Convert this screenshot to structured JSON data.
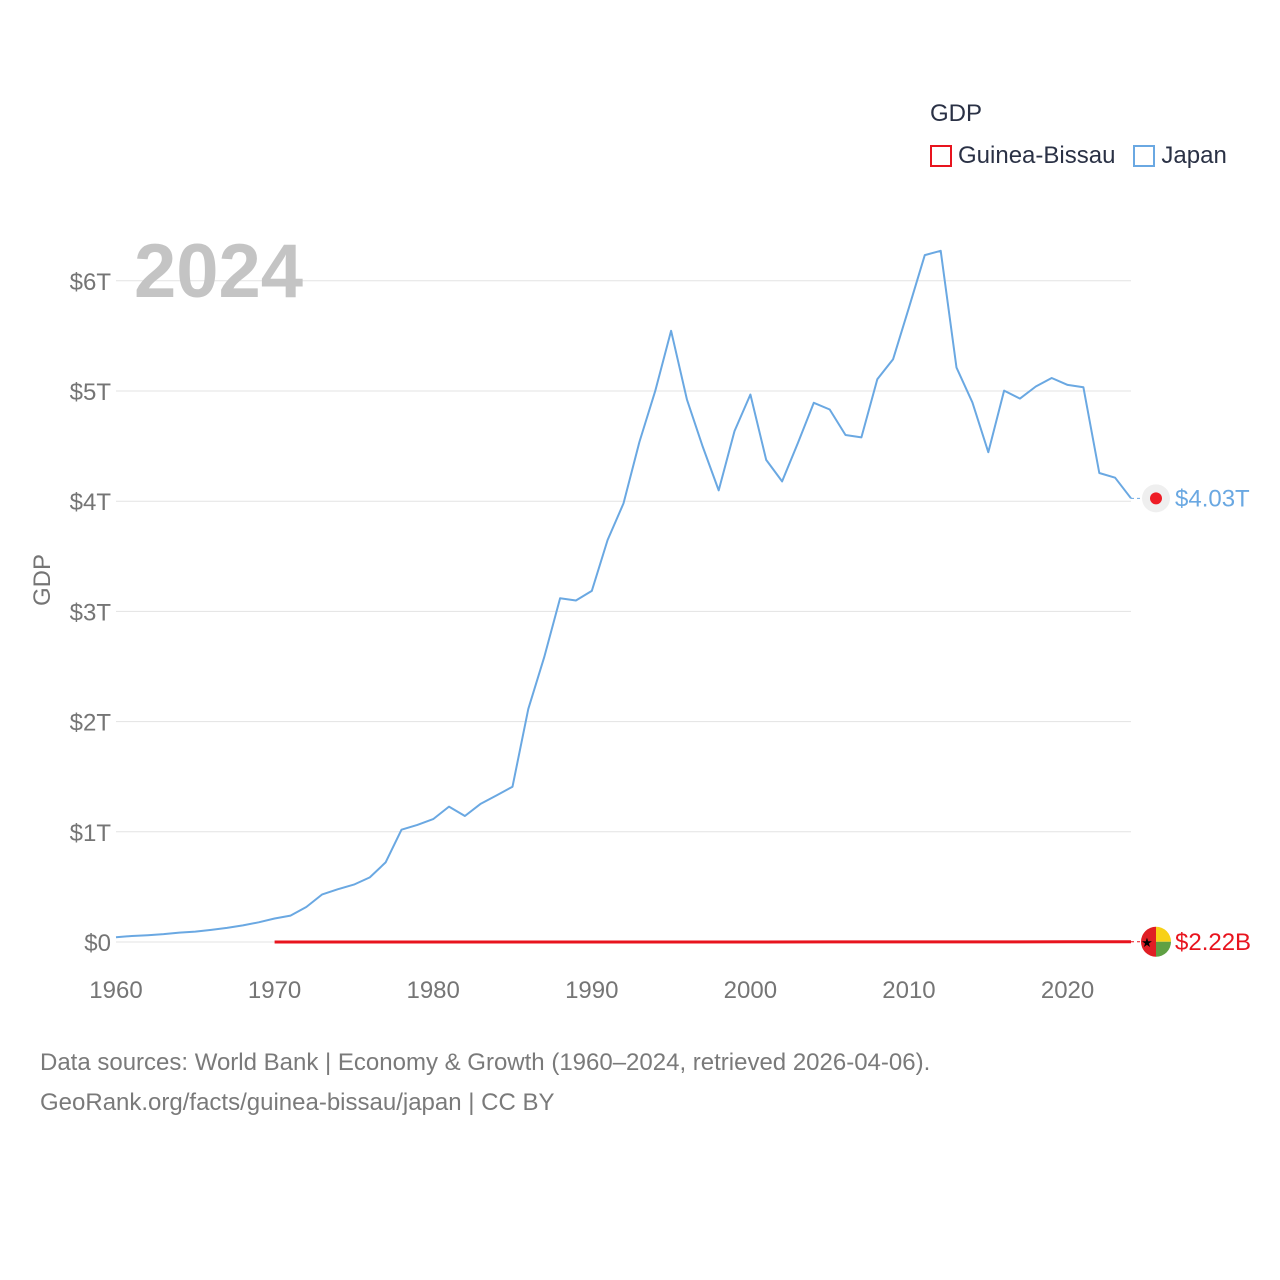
{
  "chart_data": {
    "type": "line",
    "ylabel": "GDP",
    "legend": {
      "title": "GDP",
      "position": "top-right"
    },
    "year_label": "2024",
    "xlim": [
      1960,
      2024
    ],
    "ylim": [
      0,
      6.5
    ],
    "y_ticks": [
      {
        "value": 0,
        "label": "$0"
      },
      {
        "value": 1,
        "label": "$1T"
      },
      {
        "value": 2,
        "label": "$2T"
      },
      {
        "value": 3,
        "label": "$3T"
      },
      {
        "value": 4,
        "label": "$4T"
      },
      {
        "value": 5,
        "label": "$5T"
      },
      {
        "value": 6,
        "label": "$6T"
      }
    ],
    "x_ticks": [
      {
        "value": 1960,
        "label": "1960"
      },
      {
        "value": 1970,
        "label": "1970"
      },
      {
        "value": 1980,
        "label": "1980"
      },
      {
        "value": 1990,
        "label": "1990"
      },
      {
        "value": 2000,
        "label": "2000"
      },
      {
        "value": 2010,
        "label": "2010"
      },
      {
        "value": 2020,
        "label": "2020"
      }
    ],
    "series": [
      {
        "name": "Guinea-Bissau",
        "color": "#e8141e",
        "end_label": "$2.22B",
        "x": [
          1970,
          1975,
          1980,
          1985,
          1990,
          1995,
          2000,
          2005,
          2010,
          2015,
          2020,
          2024
        ],
        "values": [
          0.0001,
          0.0001,
          0.0001,
          0.0001,
          0.0002,
          0.0003,
          0.0004,
          0.0006,
          0.0008,
          0.0011,
          0.0015,
          0.00222
        ]
      },
      {
        "name": "Japan",
        "color": "#6aa8e2",
        "end_label": "$4.03T",
        "x": [
          1960,
          1961,
          1962,
          1963,
          1964,
          1965,
          1966,
          1967,
          1968,
          1969,
          1970,
          1971,
          1972,
          1973,
          1974,
          1975,
          1976,
          1977,
          1978,
          1979,
          1980,
          1981,
          1982,
          1983,
          1984,
          1985,
          1986,
          1987,
          1988,
          1989,
          1990,
          1991,
          1992,
          1993,
          1994,
          1995,
          1996,
          1997,
          1998,
          1999,
          2000,
          2001,
          2002,
          2003,
          2004,
          2005,
          2006,
          2007,
          2008,
          2009,
          2010,
          2011,
          2012,
          2013,
          2014,
          2015,
          2016,
          2017,
          2018,
          2019,
          2020,
          2021,
          2022,
          2023,
          2024
        ],
        "values": [
          0.044,
          0.054,
          0.062,
          0.072,
          0.085,
          0.094,
          0.11,
          0.128,
          0.151,
          0.179,
          0.213,
          0.24,
          0.318,
          0.432,
          0.479,
          0.521,
          0.586,
          0.722,
          1.019,
          1.063,
          1.115,
          1.229,
          1.143,
          1.255,
          1.33,
          1.409,
          2.115,
          2.584,
          3.119,
          3.099,
          3.186,
          3.648,
          3.98,
          4.537,
          4.999,
          5.546,
          4.924,
          4.493,
          4.098,
          4.636,
          4.968,
          4.375,
          4.18,
          4.531,
          4.893,
          4.832,
          4.601,
          4.579,
          5.106,
          5.289,
          5.759,
          6.233,
          6.272,
          5.212,
          4.897,
          4.445,
          5.004,
          4.931,
          5.041,
          5.118,
          5.055,
          5.034,
          4.256,
          4.213,
          4.026
        ]
      }
    ]
  },
  "footer": {
    "line1": "Data sources: World Bank | Economy & Growth (1960–2024, retrieved 2026-04-06).",
    "line2": "GeoRank.org/facts/guinea-bissau/japan | CC BY"
  }
}
